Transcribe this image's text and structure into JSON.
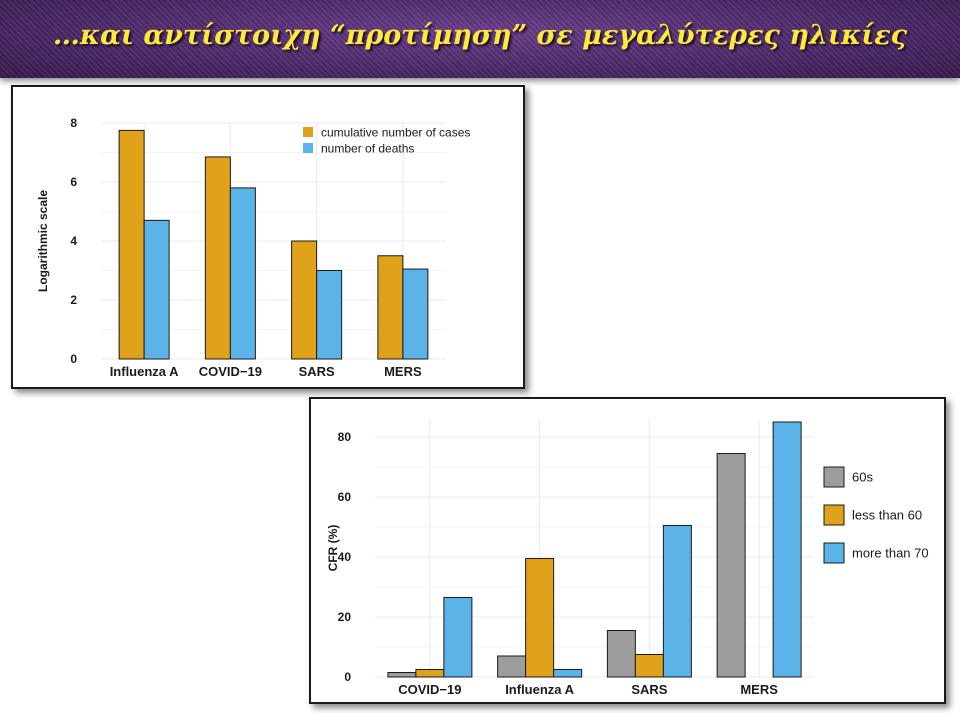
{
  "slide": {
    "title": "…και αντίστοιχη “προτίμηση” σε μεγαλύτερες ηλικίες"
  },
  "colors": {
    "orange": "#e0a21a",
    "blue": "#5bb3e8",
    "gray": "#9d9d9d"
  },
  "chart_data": [
    {
      "type": "bar",
      "ylabel": "Logarithmic scale",
      "xlabel": "",
      "ylim": [
        0,
        8
      ],
      "yticks": [
        0,
        2,
        4,
        6,
        8
      ],
      "categories": [
        "Influenza A",
        "COVID−19",
        "SARS",
        "MERS"
      ],
      "legend_position": "top-right",
      "grid": true,
      "series": [
        {
          "name": "cumulative number of cases",
          "color": "#e0a21a",
          "values": [
            7.75,
            6.85,
            4.0,
            3.5
          ]
        },
        {
          "name": "number of deaths",
          "color": "#5bb3e8",
          "values": [
            4.7,
            5.8,
            3.0,
            3.05
          ]
        }
      ]
    },
    {
      "type": "bar",
      "ylabel": "CFR (%)",
      "xlabel": "",
      "ylim": [
        0,
        86
      ],
      "yticks": [
        0,
        20,
        40,
        60,
        80
      ],
      "categories": [
        "COVID−19",
        "Influenza A",
        "SARS",
        "MERS"
      ],
      "legend_position": "right",
      "grid": true,
      "series": [
        {
          "name": "60s",
          "color": "#9d9d9d",
          "values": [
            1.5,
            7.0,
            15.5,
            74.5
          ]
        },
        {
          "name": "less than 60",
          "color": "#e0a21a",
          "values": [
            2.5,
            39.5,
            7.5,
            null
          ]
        },
        {
          "name": "more than 70",
          "color": "#5bb3e8",
          "values": [
            26.5,
            2.5,
            50.5,
            85.0
          ]
        }
      ]
    }
  ]
}
